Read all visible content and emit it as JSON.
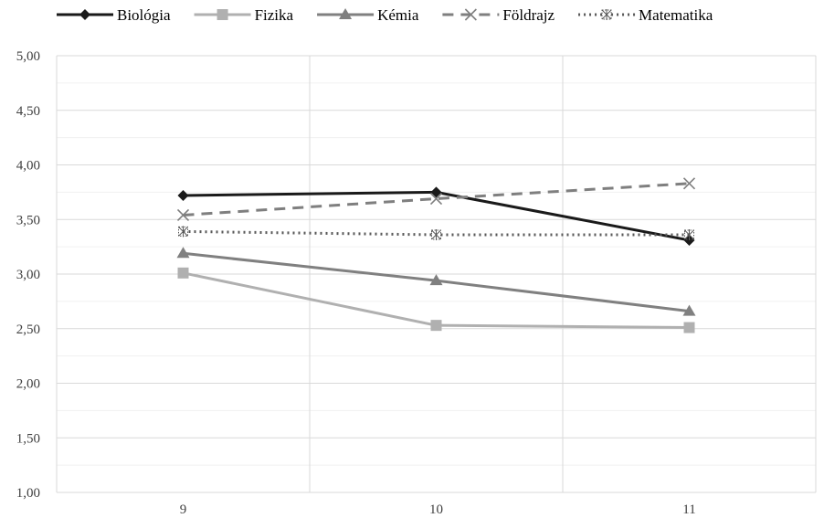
{
  "chart_data": {
    "type": "line",
    "title": "",
    "xlabel": "",
    "ylabel": "",
    "categories": [
      "9",
      "10",
      "11"
    ],
    "ylim": [
      1.0,
      5.0
    ],
    "y_ticks": [
      "1,00",
      "1,50",
      "2,00",
      "2,50",
      "3,00",
      "3,50",
      "4,00",
      "4,50",
      "5,00"
    ],
    "grid": true,
    "legend_position": "top",
    "series": [
      {
        "name": "Biológia",
        "values": [
          3.72,
          3.75,
          3.31
        ],
        "color": "#1a1a1a",
        "dash": "solid",
        "marker": "diamond"
      },
      {
        "name": "Fizika",
        "values": [
          3.01,
          2.53,
          2.51
        ],
        "color": "#b0b0b0",
        "dash": "solid",
        "marker": "square"
      },
      {
        "name": "Kémia",
        "values": [
          3.19,
          2.94,
          2.66
        ],
        "color": "#808080",
        "dash": "solid",
        "marker": "triangle"
      },
      {
        "name": "Földrajz",
        "values": [
          3.54,
          3.69,
          3.83
        ],
        "color": "#7f7f7f",
        "dash": "dashed",
        "marker": "x"
      },
      {
        "name": "Matematika",
        "values": [
          3.39,
          3.36,
          3.36
        ],
        "color": "#595959",
        "dash": "dotted",
        "marker": "asterisk"
      }
    ]
  }
}
